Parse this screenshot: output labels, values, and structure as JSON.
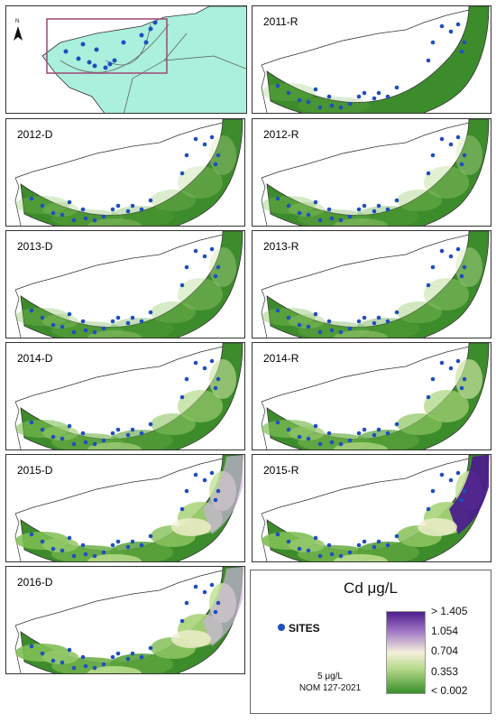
{
  "north_label": "N",
  "panels": [
    {
      "label": "2011-R"
    },
    {
      "label": "2012-D"
    },
    {
      "label": "2012-R"
    },
    {
      "label": "2013-D"
    },
    {
      "label": "2013-R"
    },
    {
      "label": "2014-D"
    },
    {
      "label": "2014-R"
    },
    {
      "label": "2015-D"
    },
    {
      "label": "2015-R"
    },
    {
      "label": "2016-D"
    }
  ],
  "legend": {
    "title": "Cd μg/L",
    "sites_label": "SITES",
    "ticks": [
      "> 1.405",
      "1.054",
      "0.704",
      "0.353",
      "< 0.002"
    ],
    "limit": "5 μg/L",
    "norm": "NOM 127-2021"
  },
  "colors": {
    "low": "#3a8f2a",
    "mid": "#f5f0dc",
    "high": "#4b1e8c",
    "sites": "#1f4fbf",
    "inset_land": "#aaf0dc"
  }
}
